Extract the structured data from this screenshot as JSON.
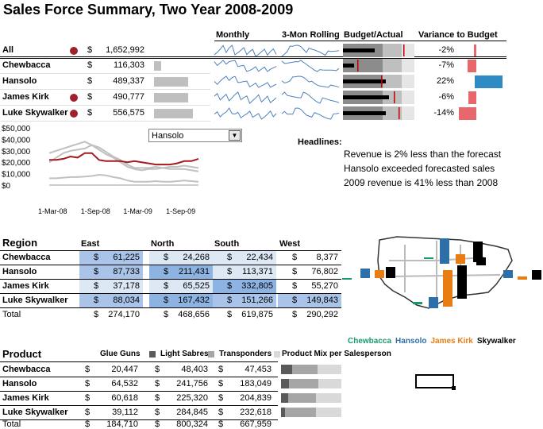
{
  "title": "Sales Force Summary, Two Year 2008-2009",
  "summary": {
    "headers": {
      "monthly": "Monthly",
      "rolling": "3-Mon Rolling",
      "budget": "Budget/Actual",
      "variance": "Variance to Budget"
    },
    "rows": [
      {
        "name": "All",
        "dot": true,
        "cur": "$",
        "value": "1,652,992",
        "share": 0,
        "variance": "-2%",
        "var_value": -2
      },
      {
        "name": "Chewbacca",
        "dot": false,
        "cur": "$",
        "value": "116,303",
        "share": 0.19,
        "variance": "-7%",
        "var_value": -7
      },
      {
        "name": "Hansolo",
        "dot": false,
        "cur": "$",
        "value": "489,337",
        "share": 0.88,
        "variance": "22%",
        "var_value": 22
      },
      {
        "name": "James Kirk",
        "dot": true,
        "cur": "$",
        "value": "490,777",
        "share": 0.88,
        "variance": "-6%",
        "var_value": -6
      },
      {
        "name": "Luke Skywalker",
        "dot": true,
        "cur": "$",
        "value": "556,575",
        "share": 1.0,
        "variance": "-14%",
        "var_value": -14
      }
    ],
    "colors": {
      "dot": "#a0202c",
      "negative": "#e8676c",
      "positive": "#2f8bc4"
    }
  },
  "chart_data": {
    "type": "line",
    "x": [
      "1-Mar-08",
      "1-Apr-08",
      "1-May-08",
      "1-Jun-08",
      "1-Jul-08",
      "1-Aug-08",
      "1-Sep-08",
      "1-Oct-08",
      "1-Nov-08",
      "1-Dec-08",
      "1-Jan-09",
      "1-Feb-09",
      "1-Mar-09",
      "1-Apr-09",
      "1-May-09",
      "1-Jun-09",
      "1-Jul-09",
      "1-Aug-09",
      "1-Sep-09",
      "1-Oct-09",
      "1-Nov-09",
      "1-Dec-09"
    ],
    "xticks": [
      "1-Mar-08",
      "1-Sep-08",
      "1-Mar-09",
      "1-Sep-09"
    ],
    "yticks": [
      "$50,000",
      "$40,000",
      "$30,000",
      "$20,000",
      "$10,000",
      "$0"
    ],
    "ylim": [
      0,
      50000
    ],
    "series": [
      {
        "name": "Hansolo",
        "color": "#a01c20",
        "values": [
          22000,
          22000,
          23000,
          25000,
          24000,
          28000,
          28000,
          22000,
          21000,
          21000,
          21000,
          20000,
          21000,
          20000,
          19000,
          18000,
          18000,
          18000,
          19000,
          21000,
          21000,
          23000
        ]
      },
      {
        "color": "#c0c0c0",
        "values": [
          28000,
          30000,
          32000,
          34000,
          36000,
          38000,
          35000,
          31000,
          27000,
          24000,
          20000,
          16000,
          14000,
          13000,
          14000,
          14000,
          15000,
          16000,
          16000,
          17000,
          16000,
          15000
        ]
      },
      {
        "color": "#c0c0c0",
        "values": [
          20000,
          24000,
          28000,
          30000,
          31000,
          32000,
          35000,
          33000,
          29000,
          25000,
          22000,
          18000,
          15000,
          15000,
          15000,
          16000,
          15000,
          14000,
          14000,
          14000,
          13000,
          12000
        ]
      },
      {
        "color": "#c0c0c0",
        "values": [
          6000,
          6000,
          6500,
          7000,
          7000,
          7500,
          8000,
          9000,
          8500,
          7000,
          6000,
          4000,
          3000,
          3000,
          3000,
          3500,
          3000,
          3000,
          3500,
          4000,
          3500,
          3000
        ]
      }
    ]
  },
  "dropdown": {
    "value": "Hansolo"
  },
  "headlines": {
    "label": "Headlines:",
    "lines": [
      "Revenue is 2% less than the forecast",
      "Hansolo exceeded forecasted sales",
      "2009 revenue is 41% less than 2008"
    ]
  },
  "region": {
    "label": "Region",
    "columns": [
      "East",
      "North",
      "South",
      "West"
    ],
    "cur": "$",
    "rows": [
      {
        "name": "Chewbacca",
        "values": [
          "61,225",
          "24,268",
          "22,434",
          "8,377"
        ],
        "shade": [
          2,
          1,
          1,
          0
        ]
      },
      {
        "name": "Hansolo",
        "values": [
          "87,733",
          "211,431",
          "113,371",
          "76,802"
        ],
        "shade": [
          2,
          3,
          1,
          0
        ]
      },
      {
        "name": "James Kirk",
        "values": [
          "37,178",
          "65,525",
          "332,805",
          "55,270"
        ],
        "shade": [
          1,
          1,
          3,
          0
        ]
      },
      {
        "name": "Luke Skywalker",
        "values": [
          "88,034",
          "167,432",
          "151,266",
          "149,843"
        ],
        "shade": [
          2,
          3,
          2,
          2
        ]
      }
    ],
    "total": {
      "name": "Total",
      "values": [
        "274,170",
        "468,656",
        "619,875",
        "290,292"
      ]
    },
    "shades": [
      "#ffffff",
      "#dde8f5",
      "#a9c4e8",
      "#8db3e2"
    ]
  },
  "map_legend": [
    {
      "name": "Chewbacca",
      "color": "#1a9a6c"
    },
    {
      "name": "Hansolo",
      "color": "#2f6fa8"
    },
    {
      "name": "James Kirk",
      "color": "#e87d14"
    },
    {
      "name": "Skywalker",
      "color": "#000000"
    }
  ],
  "product": {
    "label": "Product",
    "columns": [
      "Glue Guns",
      "Light Sabres",
      "Transponders"
    ],
    "mix_label": "Product Mix per Salesperson",
    "cur": "$",
    "rows": [
      {
        "name": "Chewbacca",
        "values": [
          "20,447",
          "48,403",
          "47,453"
        ],
        "mix": [
          0.18,
          0.42,
          0.4
        ]
      },
      {
        "name": "Hansolo",
        "values": [
          "64,532",
          "241,756",
          "183,049"
        ],
        "mix": [
          0.13,
          0.49,
          0.38
        ]
      },
      {
        "name": "James Kirk",
        "values": [
          "60,618",
          "225,320",
          "204,839"
        ],
        "mix": [
          0.12,
          0.46,
          0.42
        ]
      },
      {
        "name": "Luke Skywalker",
        "values": [
          "39,112",
          "284,845",
          "232,618"
        ],
        "mix": [
          0.07,
          0.51,
          0.42
        ]
      }
    ],
    "total": {
      "name": "Total",
      "values": [
        "184,710",
        "800,324",
        "667,959"
      ]
    },
    "colors": [
      "#5a5a5a",
      "#a6a6a6",
      "#d9d9d9"
    ]
  }
}
